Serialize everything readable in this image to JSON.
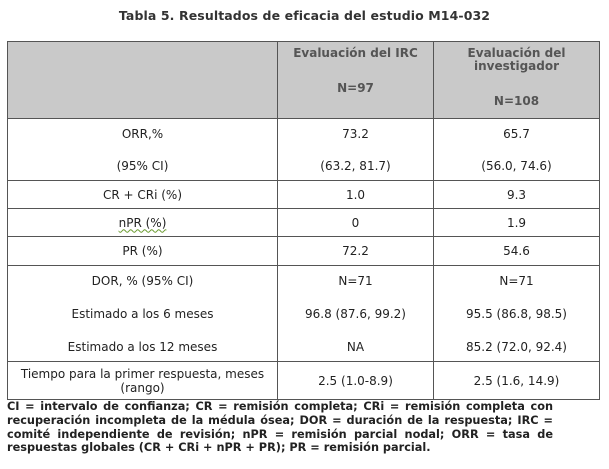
{
  "title": "Tabla 5. Resultados de eficacia del estudio M14-032",
  "table": {
    "header": {
      "col_irc_title": "Evaluación del IRC",
      "col_irc_n": "N=97",
      "col_inv_title": "Evaluación del investigador",
      "col_inv_n": "N=108"
    },
    "rows": {
      "orr": {
        "label": "ORR,%",
        "irc": "73.2",
        "inv": "65.7"
      },
      "orr_ci": {
        "label": "(95% CI)",
        "irc": "(63.2, 81.7)",
        "inv": "(56.0, 74.6)"
      },
      "cr": {
        "label": "CR + CRi (%)",
        "irc": "1.0",
        "inv": "9.3"
      },
      "npr": {
        "label": "nPR (%)",
        "irc": "0",
        "inv": "1.9"
      },
      "pr": {
        "label": "PR (%)",
        "irc": "72.2",
        "inv": "54.6"
      },
      "dor": {
        "label": "DOR, % (95% CI)",
        "irc": "N=71",
        "inv": "N=71"
      },
      "dor6": {
        "label": "Estimado a los 6 meses",
        "irc": "96.8 (87.6, 99.2)",
        "inv": "95.5 (86.8, 98.5)"
      },
      "dor12": {
        "label": "Estimado a los 12 meses",
        "irc": "NA",
        "inv": "85.2 (72.0, 92.4)"
      },
      "ttr": {
        "label": "Tiempo para la primer respuesta, meses (rango)",
        "irc": "2.5 (1.0-8.9)",
        "inv": "2.5 (1.6, 14.9)"
      }
    }
  },
  "footnote": "CI = intervalo de confianza; CR = remisión completa; CRi = remisión completa con recuperación incompleta de la médula ósea; DOR = duración de la respuesta; IRC = comité independiente de revisión; nPR = remisión parcial nodal; ORR = tasa de respuestas globales (CR + CRi + nPR + PR); PR = remisión parcial."
}
